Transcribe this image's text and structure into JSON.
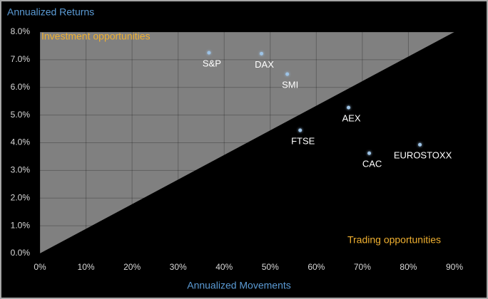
{
  "chart_data": {
    "type": "scatter",
    "title": "Annualized Returns",
    "x_label": "Annualized Movements",
    "annotations": [
      "Investment opportunities",
      "Trading opportunities"
    ],
    "point_labels": [
      "S&P",
      "DAX",
      "SMI",
      "AEX",
      "FTSE",
      "CAC",
      "EUROSTOXX"
    ],
    "x": [
      36.7,
      48.1,
      53.7,
      67.0,
      56.5,
      71.5,
      82.5
    ],
    "values": [
      7.25,
      7.22,
      6.48,
      5.27,
      4.45,
      3.62,
      3.93
    ],
    "color": "#9dc3e6",
    "xlim": [
      0,
      90
    ],
    "ylim": [
      0,
      8
    ],
    "xticks": [
      {
        "value": 0,
        "label": "0%"
      },
      {
        "value": 10,
        "label": "10%"
      },
      {
        "value": 20,
        "label": "20%"
      },
      {
        "value": 30,
        "label": "30%"
      },
      {
        "value": 40,
        "label": "40%"
      },
      {
        "value": 50,
        "label": "50%"
      },
      {
        "value": 60,
        "label": "60%"
      },
      {
        "value": 70,
        "label": "70%"
      },
      {
        "value": 80,
        "label": "80%"
      },
      {
        "value": 90,
        "label": "90%"
      }
    ],
    "yticks": [
      {
        "value": 0,
        "label": "0.0%"
      },
      {
        "value": 1,
        "label": "1.0%"
      },
      {
        "value": 2,
        "label": "2.0%"
      },
      {
        "value": 3,
        "label": "3.0%"
      },
      {
        "value": 4,
        "label": "4.0%"
      },
      {
        "value": 5,
        "label": "5.0%"
      },
      {
        "value": 6,
        "label": "6.0%"
      },
      {
        "value": 7,
        "label": "7.0%"
      },
      {
        "value": 8,
        "label": "8.0%"
      }
    ],
    "grid": true
  }
}
